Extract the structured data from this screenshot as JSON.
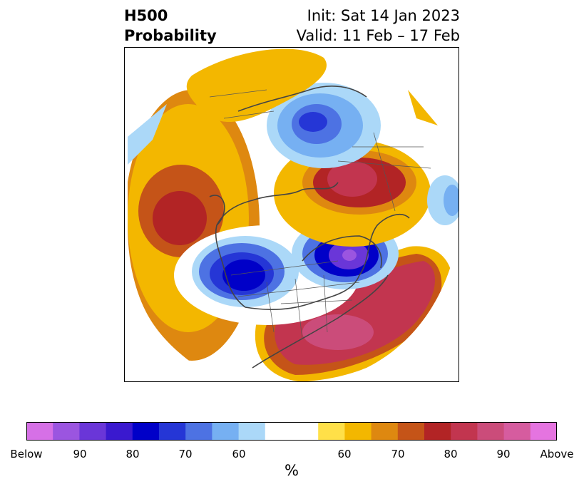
{
  "title": {
    "left_line1": "H500",
    "left_line2": "Probability",
    "right_line1": "Init: Sat 14 Jan 2023",
    "right_line2": "Valid: 11 Feb – 17 Feb"
  },
  "colorbar": {
    "colors": [
      "#d670e6",
      "#9b55e0",
      "#6a36d8",
      "#3a19cf",
      "#0000c8",
      "#2536d6",
      "#4d72e3",
      "#76b0f2",
      "#abd8f8",
      "#ffffff",
      "#ffffff",
      "#ffe048",
      "#f3b700",
      "#de8810",
      "#c55418",
      "#b22425",
      "#c2354f",
      "#cb4c7a",
      "#d65c9f",
      "#e574e0"
    ],
    "tick_labels": [
      "Below",
      "90",
      "80",
      "70",
      "60",
      "60",
      "70",
      "80",
      "90",
      "Above"
    ],
    "unit": "%"
  },
  "map": {
    "projection": "polar stereographic (North America)",
    "variable": "500 hPa height anomaly probability",
    "features": [
      {
        "name": "below-normal center",
        "region": "western United States / Great Basin",
        "category": "Below",
        "peak_level": "80"
      },
      {
        "name": "below-normal center",
        "region": "Hudson Bay / eastern Canada",
        "category": "Below",
        "peak_level": "90"
      },
      {
        "name": "below-normal area",
        "region": "Greenland / Baffin Bay",
        "category": "Below",
        "peak_level": "80"
      },
      {
        "name": "above-normal center",
        "region": "northeastern Pacific / Gulf of Alaska",
        "category": "Above",
        "peak_level": "80"
      },
      {
        "name": "above-normal center",
        "region": "Siberia / Arctic Asia",
        "category": "Above",
        "peak_level": "80"
      },
      {
        "name": "above-normal center",
        "region": "southeastern United States / western Atlantic",
        "category": "Above",
        "peak_level": "90"
      }
    ]
  }
}
